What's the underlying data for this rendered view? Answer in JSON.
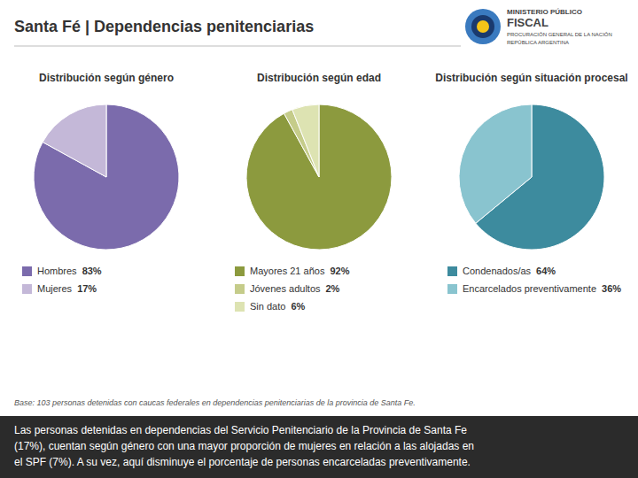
{
  "title": "Santa Fé | Dependencias penitenciarias",
  "annotations": [
    "MINISTERIO PÚBLICO",
    "FISCAL",
    "PROCURACIÓN GENERAL DE LA NACIÓN",
    "REPÚBLICA ARGENTINA"
  ],
  "footnote": "Base: 103 personas detenidas con caucas federales en dependencias penitenciarias de la provincia de Santa Fe.",
  "caption": [
    "Las personas detenidas en dependencias del Servicio Penitenciario de la Provincia de Santa Fe",
    "(17%), cuentan según género con una mayor proporción de mujeres en relación a las alojadas en",
    "el SPF (7%). A su vez, aquí disminuye el porcentaje de personas encarceladas preventivamente."
  ],
  "chart_data": [
    {
      "type": "pie",
      "title": "Distribución según género",
      "categories": [
        "Hombres",
        "Mujeres"
      ],
      "values": [
        83,
        17
      ],
      "value_labels": [
        "83%",
        "17%"
      ],
      "colors": [
        "#7b6bac",
        "#c4b8d8"
      ]
    },
    {
      "type": "pie",
      "title": "Distribución según edad",
      "categories": [
        "Mayores 21 años",
        "Jóvenes adultos",
        "Sin dato"
      ],
      "values": [
        92,
        2,
        6
      ],
      "value_labels": [
        "92%",
        "2%",
        "6%"
      ],
      "colors": [
        "#8c9a3e",
        "#c5cc8a",
        "#dde3b2"
      ]
    },
    {
      "type": "pie",
      "title": "Distribución según situación procesal",
      "categories": [
        "Condenados/as",
        "Encarcelados preventivamente"
      ],
      "values": [
        64,
        36
      ],
      "value_labels": [
        "64%",
        "36%"
      ],
      "colors": [
        "#3d8b9e",
        "#89c4cf"
      ]
    }
  ]
}
